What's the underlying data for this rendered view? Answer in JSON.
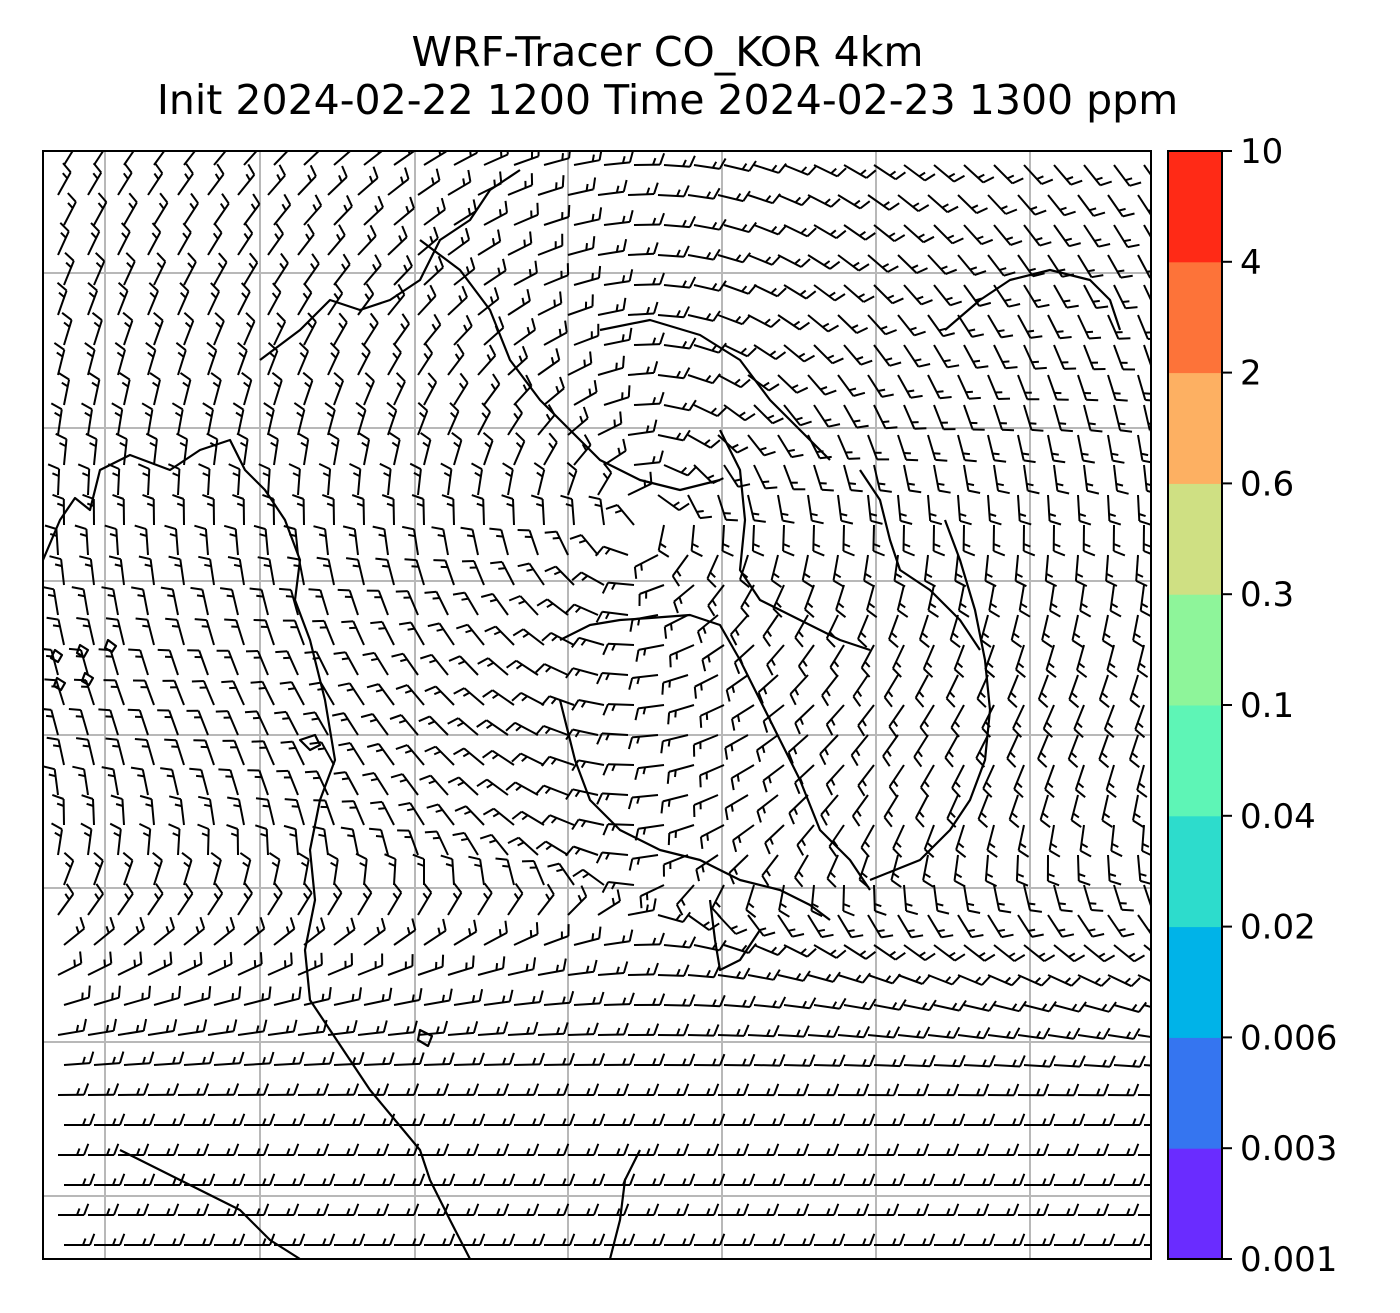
{
  "title": {
    "line1": "WRF-Tracer CO_KOR 4km",
    "line2": "Init 2024-02-22 1200 Time 2024-02-23 1300 ppm"
  },
  "colorbar": {
    "levels": [
      "0.001",
      "0.003",
      "0.006",
      "0.02",
      "0.04",
      "0.1",
      "0.3",
      "0.6",
      "2",
      "4",
      "10"
    ],
    "colors": [
      "#6a2cff",
      "#3575f0",
      "#00b3e8",
      "#2ddccc",
      "#5ef5b6",
      "#8ef59a",
      "#cfe083",
      "#fdb062",
      "#fd7339",
      "#ff2a16"
    ]
  },
  "map": {
    "gridline_color": "#b8b8b8",
    "barb_color": "#000000",
    "coast_color": "#000000",
    "contour_fill": "none"
  }
}
